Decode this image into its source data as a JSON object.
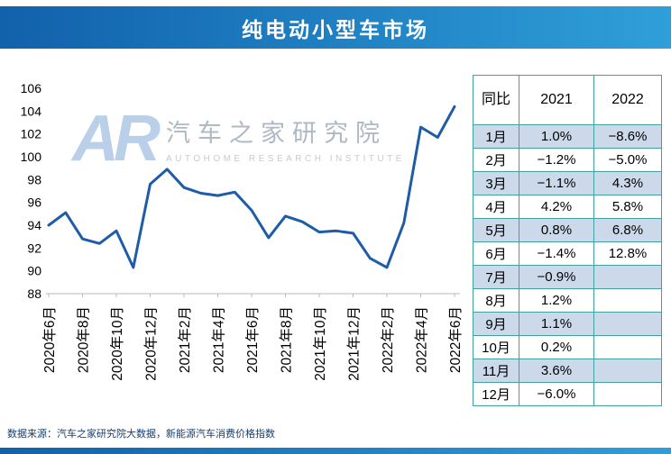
{
  "title": "纯电动小型车市场",
  "watermark": {
    "logo": "AR",
    "cn": "汽车之家研究院",
    "en": "AUTOHOME  RESEARCH  INSTITUTE"
  },
  "colors": {
    "banner_left": "#1161ab",
    "banner_right": "#2f9fd9",
    "line": "#1f5ca8",
    "table_border": "#43a0a0",
    "shaded_row": "#ccd9ea",
    "axis": "#b9b9b9"
  },
  "chart_data": {
    "type": "line",
    "x_tick_labels": [
      "2020年6月",
      "2020年8月",
      "2020年10月",
      "2020年12月",
      "2021年2月",
      "2021年4月",
      "2021年6月",
      "2021年8月",
      "2021年10月",
      "2021年12月",
      "2022年2月",
      "2022年4月",
      "2022年6月"
    ],
    "tick_every": 2,
    "values": [
      94.0,
      95.1,
      92.8,
      92.4,
      93.5,
      90.3,
      97.6,
      98.9,
      97.3,
      96.8,
      96.6,
      96.9,
      95.3,
      92.9,
      94.8,
      94.3,
      93.4,
      93.5,
      93.3,
      91.1,
      90.3,
      94.2,
      102.6,
      101.7,
      104.4
    ],
    "ylim": [
      88,
      106
    ],
    "ytick_step": 2,
    "grid": false,
    "legend": "none",
    "title": "",
    "xlabel": "",
    "ylabel": ""
  },
  "table": {
    "header": {
      "metric": "同比",
      "y2021": "2021",
      "y2022": "2022"
    },
    "rows": [
      {
        "month": "1月",
        "y2021": "1.0%",
        "y2022": "−8.6%"
      },
      {
        "month": "2月",
        "y2021": "−1.2%",
        "y2022": "−5.0%"
      },
      {
        "month": "3月",
        "y2021": "−1.1%",
        "y2022": "4.3%"
      },
      {
        "month": "4月",
        "y2021": "4.2%",
        "y2022": "5.8%"
      },
      {
        "month": "5月",
        "y2021": "0.8%",
        "y2022": "6.8%"
      },
      {
        "month": "6月",
        "y2021": "−1.4%",
        "y2022": "12.8%"
      },
      {
        "month": "7月",
        "y2021": "−0.9%",
        "y2022": ""
      },
      {
        "month": "8月",
        "y2021": "1.2%",
        "y2022": ""
      },
      {
        "month": "9月",
        "y2021": "1.1%",
        "y2022": ""
      },
      {
        "month": "10月",
        "y2021": "0.2%",
        "y2022": ""
      },
      {
        "month": "11月",
        "y2021": "3.6%",
        "y2022": ""
      },
      {
        "month": "12月",
        "y2021": "−6.0%",
        "y2022": ""
      }
    ]
  },
  "source": "数据来源：汽车之家研究院大数据，新能源汽车消费价格指数"
}
